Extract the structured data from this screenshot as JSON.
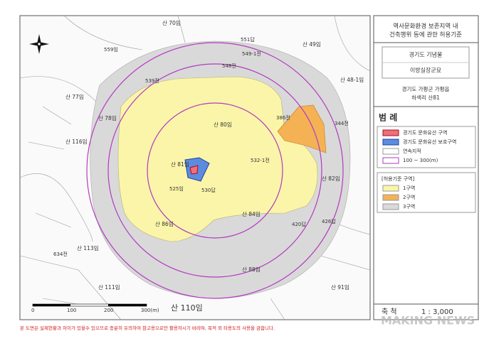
{
  "panel": {
    "title_lines": [
      "역사문화환경 보존지역 내",
      "건축행위 등에 관한 허용기준"
    ],
    "designation": "경기도 기념물",
    "site_name": "이방실장군묘",
    "address_lines": [
      "경기도 가평군 가평읍",
      "하색리 산81"
    ],
    "legend_title": "범 례",
    "legend_items": [
      "경기도 문화유산 구역",
      "경기도 문화유산 보호구역",
      "연속지적",
      "100 ~ 300(m)"
    ],
    "zone_header": "[허용기준 구역]",
    "zones": [
      "1구역",
      "2구역",
      "3구역"
    ],
    "scale_label": "축 척",
    "scale_value": "1 : 3,000"
  },
  "map": {
    "labels": [
      "산 80임",
      "산 81임",
      "산 84임",
      "산 86임",
      "산 88임",
      "산 110임",
      "산 77임",
      "산 78임",
      "산 116임",
      "산 113임",
      "산 111임",
      "산 49임",
      "산 48-1임",
      "산 82임",
      "산 91임",
      "산 70임",
      "548전",
      "539전",
      "386전",
      "344전",
      "420답",
      "634전",
      "559임",
      "549-1전",
      "551답",
      "532-1전",
      "525임",
      "530답",
      "426답"
    ],
    "scale_bar": [
      "0",
      "100",
      "200",
      "300(m)"
    ]
  },
  "disclaimer": "본 도면은 실제현황과 차이가 있을수 있으므로 충분히 유의하여 참고용으로만 활용하시기 바라며, 목적 외 타용도의 사용을 금합니다.",
  "watermark": "MAKING NEWS"
}
